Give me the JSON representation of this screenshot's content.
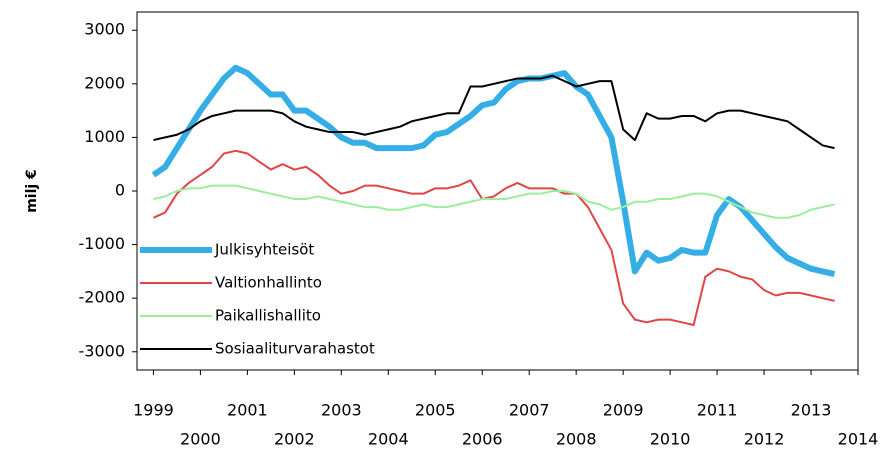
{
  "chart_data": {
    "type": "line",
    "ylabel": "milj €",
    "x": [
      1999,
      1999.25,
      1999.5,
      1999.75,
      2000,
      2000.25,
      2000.5,
      2000.75,
      2001,
      2001.25,
      2001.5,
      2001.75,
      2002,
      2002.25,
      2002.5,
      2002.75,
      2003,
      2003.25,
      2003.5,
      2003.75,
      2004,
      2004.25,
      2004.5,
      2004.75,
      2005,
      2005.25,
      2005.5,
      2005.75,
      2006,
      2006.25,
      2006.5,
      2006.75,
      2007,
      2007.25,
      2007.5,
      2007.75,
      2008,
      2008.25,
      2008.5,
      2008.75,
      2009,
      2009.25,
      2009.5,
      2009.75,
      2010,
      2010.25,
      2010.5,
      2010.75,
      2011,
      2011.25,
      2011.5,
      2011.75,
      2012,
      2012.25,
      2012.5,
      2012.75,
      2013,
      2013.25,
      2013.5
    ],
    "series": [
      {
        "name": "Julkisyhteisöt",
        "color": "#35aee6",
        "width": 6,
        "values": [
          300,
          450,
          800,
          1150,
          1500,
          1800,
          2100,
          2300,
          2200,
          2000,
          1800,
          1800,
          1500,
          1500,
          1350,
          1200,
          1000,
          900,
          900,
          800,
          800,
          800,
          800,
          850,
          1050,
          1100,
          1250,
          1400,
          1600,
          1650,
          1900,
          2050,
          2100,
          2100,
          2150,
          2200,
          1950,
          1800,
          1400,
          1000,
          -200,
          -1500,
          -1150,
          -1300,
          -1250,
          -1100,
          -1150,
          -1150,
          -450,
          -150,
          -300,
          -550,
          -800,
          -1050,
          -1250,
          -1350,
          -1450,
          -1500,
          -1550
        ]
      },
      {
        "name": "Valtionhallinto",
        "color": "#e04545",
        "width": 2,
        "values": [
          -500,
          -400,
          -50,
          150,
          300,
          450,
          700,
          750,
          700,
          550,
          400,
          500,
          400,
          450,
          300,
          100,
          -50,
          0,
          100,
          100,
          50,
          0,
          -50,
          -50,
          50,
          50,
          100,
          200,
          -150,
          -100,
          50,
          150,
          50,
          50,
          50,
          -50,
          -50,
          -300,
          -700,
          -1100,
          -2100,
          -2400,
          -2450,
          -2400,
          -2400,
          -2450,
          -2500,
          -1600,
          -1450,
          -1500,
          -1600,
          -1650,
          -1850,
          -1950,
          -1900,
          -1900,
          -1950,
          -2000,
          -2050
        ]
      },
      {
        "name": "Paikallishallito",
        "color": "#9bee9b",
        "width": 2,
        "values": [
          -150,
          -100,
          0,
          50,
          50,
          100,
          100,
          100,
          50,
          0,
          -50,
          -100,
          -150,
          -150,
          -100,
          -150,
          -200,
          -250,
          -300,
          -300,
          -350,
          -350,
          -300,
          -250,
          -300,
          -300,
          -250,
          -200,
          -150,
          -150,
          -150,
          -100,
          -50,
          -50,
          0,
          0,
          -50,
          -200,
          -250,
          -350,
          -300,
          -200,
          -200,
          -150,
          -150,
          -100,
          -50,
          -50,
          -100,
          -200,
          -300,
          -400,
          -450,
          -500,
          -500,
          -450,
          -350,
          -300,
          -250
        ]
      },
      {
        "name": "Sosiaaliturvarahastot",
        "color": "#000000",
        "width": 2,
        "values": [
          950,
          1000,
          1050,
          1150,
          1300,
          1400,
          1450,
          1500,
          1500,
          1500,
          1500,
          1450,
          1300,
          1200,
          1150,
          1100,
          1100,
          1100,
          1050,
          1100,
          1150,
          1200,
          1300,
          1350,
          1400,
          1450,
          1450,
          1950,
          1950,
          2000,
          2050,
          2100,
          2100,
          2100,
          2150,
          2050,
          1950,
          2000,
          2050,
          2050,
          1150,
          950,
          1450,
          1350,
          1350,
          1400,
          1400,
          1300,
          1450,
          1500,
          1500,
          1450,
          1400,
          1350,
          1300,
          1150,
          1000,
          850,
          800
        ]
      }
    ],
    "xlim": [
      1998.65,
      2014
    ],
    "xticks": [
      1999,
      2000,
      2001,
      2002,
      2003,
      2004,
      2005,
      2006,
      2007,
      2008,
      2009,
      2010,
      2011,
      2012,
      2013,
      2014
    ],
    "ylim": [
      -3340,
      3340
    ],
    "yticks": [
      -3000,
      -2000,
      -1000,
      0,
      1000,
      2000,
      3000
    ],
    "grid": false,
    "legend": "lower left"
  }
}
